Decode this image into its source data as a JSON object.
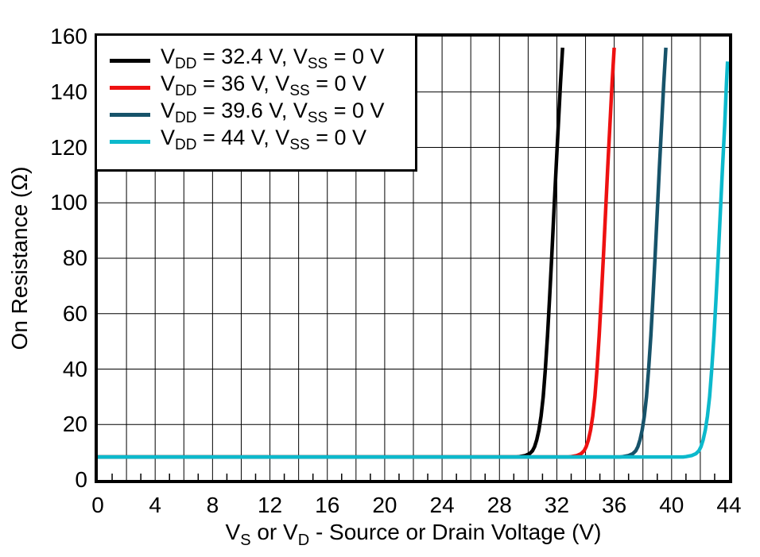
{
  "chart_data": {
    "type": "line",
    "title": "",
    "xlabel_parts": [
      "V",
      "S",
      " or V",
      "D",
      " - Source or Drain Voltage (V)"
    ],
    "ylabel": "On Resistance (Ω)",
    "xlim": [
      0,
      44
    ],
    "ylim": [
      0,
      160
    ],
    "x_ticks": [
      0,
      4,
      8,
      12,
      16,
      20,
      24,
      28,
      32,
      36,
      40,
      44
    ],
    "y_ticks": [
      0,
      20,
      40,
      60,
      80,
      100,
      120,
      140,
      160
    ],
    "x_grid_step": 2,
    "y_grid_step": 20,
    "x_minor_tick_step": 1,
    "x_minor_tick_length": 8,
    "grid": true,
    "legend_position": "top-left",
    "background": "#ffffff",
    "axis_color": "#000000",
    "grid_color": "#000000",
    "flat_resistance_ohm": 8.3,
    "series": [
      {
        "name": "VDD = 32.4 V, VSS = 0 V",
        "label_parts": [
          "V",
          "DD",
          " = 32.4 V, V",
          "SS",
          " = 0 V"
        ],
        "color": "#000000",
        "vdd": 32.4,
        "points": [
          [
            0,
            8.3
          ],
          [
            29.2,
            8.3
          ],
          [
            29.4,
            8.4
          ],
          [
            29.8,
            8.8
          ],
          [
            30.1,
            9.5
          ],
          [
            30.3,
            10.5
          ],
          [
            30.45,
            12
          ],
          [
            30.6,
            14.5
          ],
          [
            30.75,
            18
          ],
          [
            30.9,
            23
          ],
          [
            31.05,
            30
          ],
          [
            31.2,
            40
          ],
          [
            31.35,
            52
          ],
          [
            31.5,
            66
          ],
          [
            31.65,
            81
          ],
          [
            31.8,
            97
          ],
          [
            31.95,
            113
          ],
          [
            32.1,
            128
          ],
          [
            32.25,
            143
          ],
          [
            32.4,
            156
          ]
        ]
      },
      {
        "name": "VDD = 36 V, VSS = 0 V",
        "label_parts": [
          "V",
          "DD",
          " = 36 V, V",
          "SS",
          " = 0 V"
        ],
        "color": "#ee1111",
        "vdd": 36,
        "points": [
          [
            0,
            8.3
          ],
          [
            32.8,
            8.3
          ],
          [
            33.0,
            8.4
          ],
          [
            33.4,
            8.8
          ],
          [
            33.7,
            9.5
          ],
          [
            33.9,
            10.5
          ],
          [
            34.05,
            12
          ],
          [
            34.2,
            14.5
          ],
          [
            34.35,
            18
          ],
          [
            34.5,
            23
          ],
          [
            34.65,
            30
          ],
          [
            34.8,
            40
          ],
          [
            34.95,
            52
          ],
          [
            35.1,
            66
          ],
          [
            35.25,
            81
          ],
          [
            35.4,
            97
          ],
          [
            35.55,
            113
          ],
          [
            35.7,
            128
          ],
          [
            35.85,
            143
          ],
          [
            36,
            156
          ]
        ]
      },
      {
        "name": "VDD = 39.6 V, VSS = 0 V",
        "label_parts": [
          "V",
          "DD",
          " = 39.6 V, V",
          "SS",
          " = 0 V"
        ],
        "color": "#17536a",
        "vdd": 39.6,
        "points": [
          [
            0,
            8.3
          ],
          [
            36.4,
            8.3
          ],
          [
            36.6,
            8.4
          ],
          [
            37.0,
            8.8
          ],
          [
            37.3,
            9.5
          ],
          [
            37.5,
            10.5
          ],
          [
            37.65,
            12
          ],
          [
            37.8,
            14.5
          ],
          [
            37.95,
            18
          ],
          [
            38.1,
            23
          ],
          [
            38.25,
            30
          ],
          [
            38.4,
            40
          ],
          [
            38.55,
            52
          ],
          [
            38.7,
            66
          ],
          [
            38.85,
            81
          ],
          [
            39.0,
            97
          ],
          [
            39.15,
            113
          ],
          [
            39.3,
            128
          ],
          [
            39.45,
            143
          ],
          [
            39.6,
            156
          ]
        ]
      },
      {
        "name": "VDD = 44 V, VSS = 0 V",
        "label_parts": [
          "V",
          "DD",
          " = 44 V, V",
          "SS",
          " = 0 V"
        ],
        "color": "#0cb9cc",
        "vdd": 44,
        "points": [
          [
            0,
            8.3
          ],
          [
            40.8,
            8.3
          ],
          [
            41.0,
            8.4
          ],
          [
            41.4,
            8.8
          ],
          [
            41.7,
            9.5
          ],
          [
            41.9,
            10.5
          ],
          [
            42.05,
            12
          ],
          [
            42.2,
            14.5
          ],
          [
            42.35,
            18
          ],
          [
            42.5,
            23
          ],
          [
            42.65,
            30
          ],
          [
            42.8,
            40
          ],
          [
            42.95,
            52
          ],
          [
            43.1,
            66
          ],
          [
            43.25,
            81
          ],
          [
            43.4,
            97
          ],
          [
            43.55,
            113
          ],
          [
            43.7,
            128
          ],
          [
            43.82,
            143
          ],
          [
            43.9,
            151
          ]
        ]
      }
    ]
  }
}
